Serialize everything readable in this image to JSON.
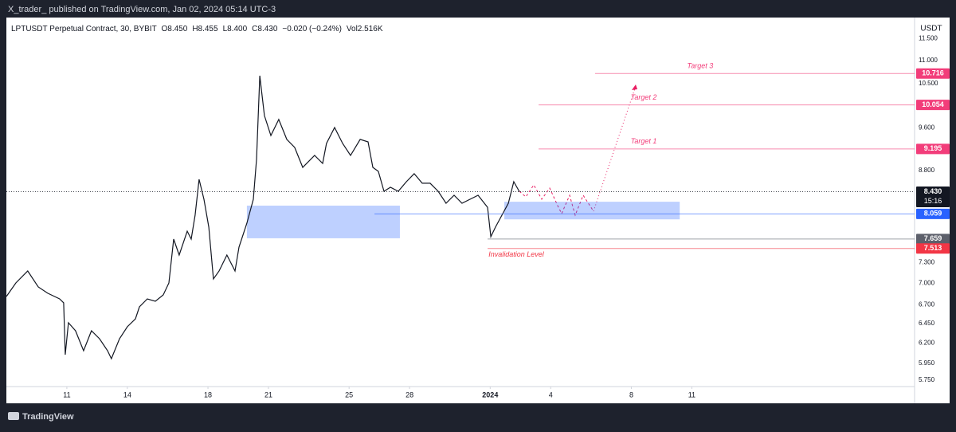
{
  "header": {
    "title": "X_trader_ published on TradingView.com, Jan 02, 2024 05:14 UTC-3"
  },
  "footer": {
    "brand": "TradingView"
  },
  "chart_data": {
    "type": "line",
    "legend": [
      "LPTUSDT Perpetual Contract, 30, BYBIT",
      "O8.450",
      "H8.455",
      "L8.400",
      "C8.430",
      "−0.020 (−0.24%)",
      "Vol2.516K"
    ],
    "currency": "USDT",
    "log_scale": true,
    "color": "#131722",
    "xlim": [
      8,
      53.05
    ],
    "xticks": [
      11,
      14,
      18,
      21,
      25,
      28,
      {
        "value": 32,
        "label": "2024"
      },
      {
        "value": 35,
        "label": "4"
      },
      {
        "value": 39,
        "label": "8"
      },
      {
        "value": 42,
        "label": "11"
      }
    ],
    "ylim": [
      5.676,
      12.006
    ],
    "yticks": [
      {
        "value": 11.5,
        "label": "11.500"
      },
      {
        "value": 11,
        "label": "11.000"
      },
      {
        "value": 10.5,
        "label": "10.500"
      },
      {
        "value": 9.6,
        "label": "9.600"
      },
      {
        "value": 8.8,
        "label": "8.800"
      },
      {
        "value": 7.3,
        "label": "7.300"
      },
      {
        "value": 7,
        "label": "7.000"
      },
      {
        "value": 6.7,
        "label": "6.700"
      },
      {
        "value": 6.45,
        "label": "6.450"
      },
      {
        "value": 6.2,
        "label": "6.200"
      },
      {
        "value": 5.95,
        "label": "5.950"
      },
      {
        "value": 5.75,
        "label": "5.750"
      }
    ],
    "x": [
      8.0,
      8.47,
      9.06,
      9.58,
      10.05,
      10.64,
      10.84,
      10.92,
      11.08,
      11.43,
      11.83,
      12.22,
      12.62,
      13.02,
      13.21,
      13.61,
      14.0,
      14.4,
      14.6,
      14.99,
      15.39,
      15.78,
      16.06,
      16.3,
      16.57,
      16.97,
      17.17,
      17.36,
      17.56,
      17.8,
      18.04,
      18.27,
      18.55,
      18.94,
      19.34,
      19.54,
      19.93,
      20.25,
      20.41,
      20.57,
      20.8,
      21.12,
      21.51,
      21.91,
      22.3,
      22.7,
      23.29,
      23.69,
      23.88,
      24.28,
      24.68,
      25.07,
      25.55,
      25.94,
      26.18,
      26.45,
      26.73,
      27.05,
      27.44,
      27.84,
      28.23,
      28.63,
      29.02,
      29.42,
      29.81,
      30.21,
      30.6,
      31.0,
      31.4,
      31.87,
      32.03,
      32.26,
      32.58,
      32.9,
      33.17,
      33.45
    ],
    "values": [
      6.815,
      7.005,
      7.177,
      6.948,
      6.86,
      6.782,
      6.728,
      6.056,
      6.461,
      6.357,
      6.105,
      6.357,
      6.255,
      6.105,
      6.007,
      6.255,
      6.408,
      6.513,
      6.673,
      6.782,
      6.749,
      6.837,
      7.005,
      7.657,
      7.413,
      7.782,
      7.657,
      8.038,
      8.645,
      8.302,
      7.845,
      7.062,
      7.177,
      7.413,
      7.177,
      7.534,
      7.909,
      8.302,
      9.002,
      10.669,
      9.84,
      9.45,
      9.761,
      9.374,
      9.223,
      8.857,
      9.075,
      8.929,
      9.298,
      9.604,
      9.298,
      9.075,
      9.374,
      9.328,
      8.857,
      8.786,
      8.438,
      8.506,
      8.438,
      8.603,
      8.744,
      8.576,
      8.576,
      8.438,
      8.235,
      8.37,
      8.235,
      8.302,
      8.37,
      8.168,
      7.694,
      7.845,
      8.038,
      8.235,
      8.603,
      8.43
    ],
    "zones": [
      {
        "top": 8.195,
        "bottom": 7.67,
        "x": [
          19.93,
          27.52
        ],
        "color": "#2962ff"
      },
      {
        "top": 8.26,
        "bottom": 7.97,
        "x": [
          32.7,
          41.4
        ],
        "color": "#2962ff"
      }
    ],
    "levels": [
      {
        "value": 10.716,
        "label": "10.716",
        "name": "Target 3",
        "color": "#f23d7a",
        "from": 37.2
      },
      {
        "value": 10.054,
        "label": "10.054",
        "name": "Target 2",
        "color": "#f23d7a",
        "from": 34.4
      },
      {
        "value": 9.195,
        "label": "9.195",
        "name": "Target 1",
        "color": "#f23d7a",
        "from": 34.4
      },
      {
        "value": 8.43,
        "label": "8.430",
        "countdown": "15:16",
        "color": "#131722",
        "from": 8,
        "style": "dotted"
      },
      {
        "value": 8.059,
        "label": "8.059",
        "color": "#2962ff",
        "from": 26.26
      },
      {
        "value": 7.659,
        "label": "7.659",
        "color": "#5d606b",
        "from": 31.87
      },
      {
        "value": 7.513,
        "label": "7.513",
        "name": "Invalidation Level",
        "color": "#f23645",
        "from": 31.87
      }
    ]
  }
}
